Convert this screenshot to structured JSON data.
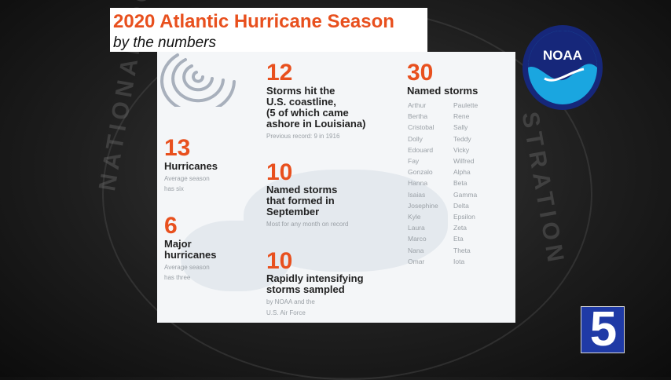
{
  "graphic": {
    "title": "2020 Atlantic Hurricane Season",
    "subtitle": "by the numbers"
  },
  "stats": {
    "us_landfalls": {
      "number": "12",
      "line1": "Storms hit the",
      "line2": "U.S. coastline,",
      "line3": "(5 of which came",
      "line4": "ashore in Louisiana)",
      "note": "Previous record: 9 in 1916"
    },
    "hurricanes": {
      "number": "13",
      "label": "Hurricanes",
      "note1": "Average season",
      "note2": "has six"
    },
    "major_hurricanes": {
      "number": "6",
      "line1": "Major",
      "line2": "hurricanes",
      "note1": "Average season",
      "note2": "has three"
    },
    "september": {
      "number": "10",
      "line1": "Named storms",
      "line2": "that formed in",
      "line3": "September",
      "note": "Most for any month on record"
    },
    "rapid": {
      "number": "10",
      "line1": "Rapidly intensifying",
      "line2": "storms sampled",
      "note1": "by NOAA and the",
      "note2": "U.S. Air Force"
    },
    "named_storms": {
      "number": "30",
      "label": "Named storms",
      "names_col1": [
        "Arthur",
        "Bertha",
        "Cristobal",
        "Dolly",
        "Edouard",
        "Fay",
        "Gonzalo",
        "Hanna",
        "Isaias",
        "Josephine",
        "Kyle",
        "Laura",
        "Marco",
        "Nana",
        "Omar"
      ],
      "names_col2": [
        "Paulette",
        "Rene",
        "Sally",
        "Teddy",
        "Vicky",
        "Wilfred",
        "Alpha",
        "Beta",
        "Gamma",
        "Delta",
        "Epsilon",
        "Zeta",
        "Eta",
        "Theta",
        "Iota"
      ]
    }
  },
  "logos": {
    "noaa_label": "NOAA",
    "channel_number": "5"
  },
  "background": {
    "left_text": "NATIONAL OC",
    "right_text": "STRATION"
  },
  "colors": {
    "accent_orange": "#e8501e",
    "noaa_blue": "#1aa6e0",
    "noaa_navy": "#16277a",
    "channel_blue": "#1f3aa6"
  }
}
